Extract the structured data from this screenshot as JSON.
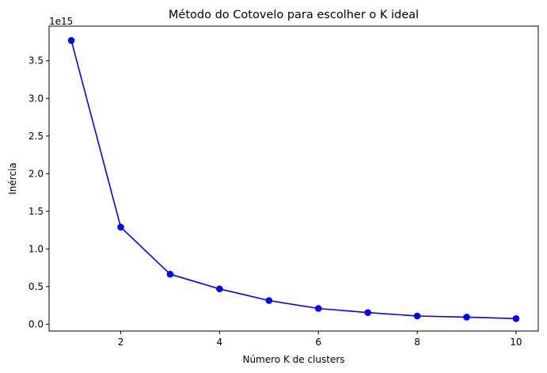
{
  "chart_data": {
    "type": "line",
    "title": "Método do Cotovelo para escolher o K ideal",
    "xlabel": "Número K de clusters",
    "ylabel": "Inércia",
    "y_offset_label": "1e15",
    "x": [
      1,
      2,
      3,
      4,
      5,
      6,
      7,
      8,
      9,
      10
    ],
    "series": [
      {
        "values": [
          3.77,
          1.29,
          0.665,
          0.47,
          0.315,
          0.21,
          0.155,
          0.11,
          0.095,
          0.075
        ],
        "color": "#0000ff",
        "marker": "circle"
      }
    ],
    "xlim": [
      0.55,
      10.45
    ],
    "ylim": [
      -0.09,
      3.96
    ],
    "x_ticks": [
      2,
      4,
      6,
      8,
      10
    ],
    "x_tick_labels": [
      "2",
      "4",
      "6",
      "8",
      "10"
    ],
    "y_ticks": [
      0.0,
      0.5,
      1.0,
      1.5,
      2.0,
      2.5,
      3.0,
      3.5
    ],
    "y_tick_labels": [
      "0.0",
      "0.5",
      "1.0",
      "1.5",
      "2.0",
      "2.5",
      "3.0",
      "3.5"
    ],
    "grid": false
  }
}
